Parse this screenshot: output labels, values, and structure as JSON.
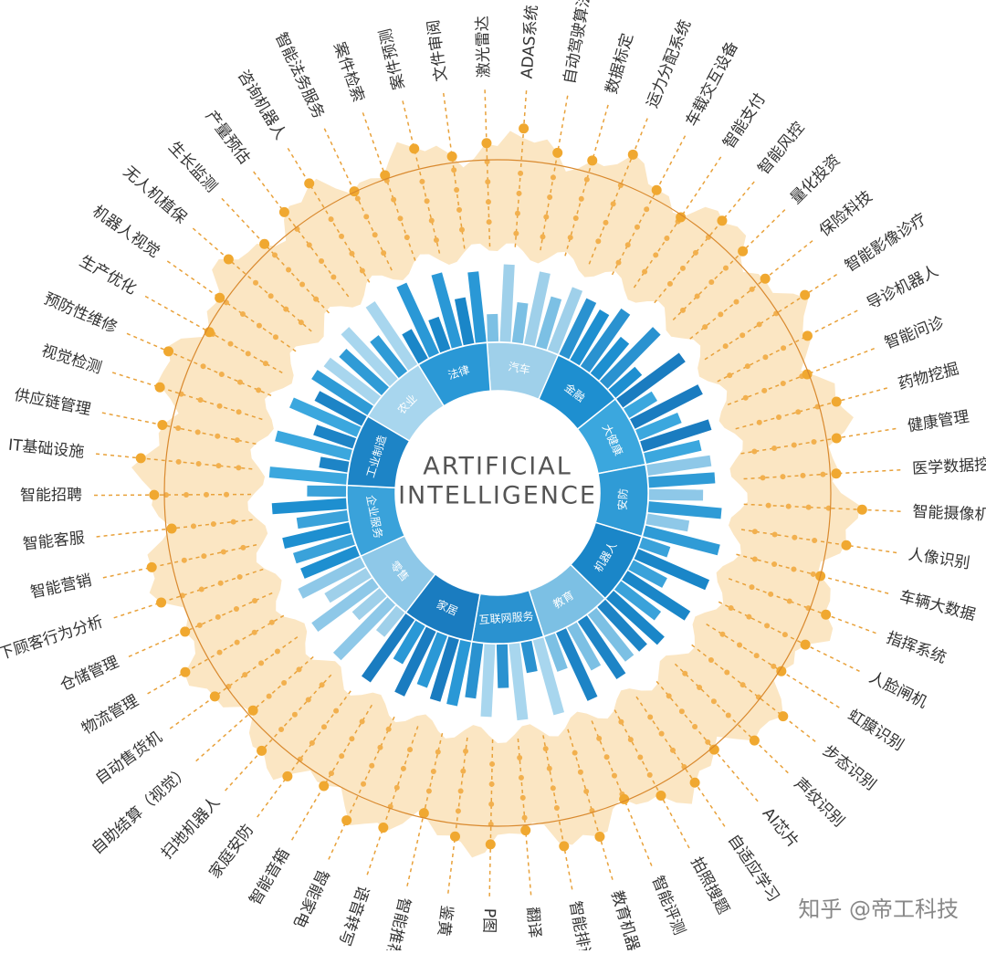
{
  "center_title": [
    "ARTIFICIAL",
    "INTELLIGENCE"
  ],
  "sectors": [
    "汽车",
    "金融",
    "大健康",
    "安防",
    "机器人",
    "教育",
    "互联网服务",
    "家居",
    "零售",
    "企业服务",
    "工业制造",
    "农业",
    "法律"
  ],
  "applications": [
    "自动驾驶算法",
    "数据标定",
    "运力分配系统",
    "车载交互设备",
    "智能支付",
    "智能风控",
    "量化投资",
    "保险科技",
    "智能影像诊疗",
    "导诊机器人",
    "智能问诊",
    "药物挖掘",
    "健康管理",
    "医学数据挖掘",
    "智能摄像机",
    "人像识别",
    "车辆大数据",
    "指挥系统",
    "人脸闸机",
    "虹膜识别",
    "步态识别",
    "声纹识别",
    "AI芯片",
    "自适应学习",
    "拍照搜题",
    "智能评测",
    "教育机器人",
    "智能排课",
    "翻译",
    "P图",
    "鉴黄",
    "智能推荐",
    "语音转写",
    "智能家电",
    "智能音箱",
    "家庭安防",
    "扫地机器人",
    "自助结算（视觉）",
    "自动售货机",
    "物流管理",
    "仓储管理",
    "线下顾客行为分析",
    "智能营销",
    "智能客服",
    "智能招聘",
    "IT基础设施",
    "供应链管理",
    "视觉检测",
    "预防性维修",
    "生产优化",
    "机器人视觉",
    "无人机植保",
    "生长监测",
    "产量预估",
    "咨询机器人",
    "智能法务服务",
    "案件检索",
    "案件预测",
    "文件审阅",
    "激光雷达",
    "ADAS系统"
  ],
  "watermark": "知乎 @帝工科技"
}
